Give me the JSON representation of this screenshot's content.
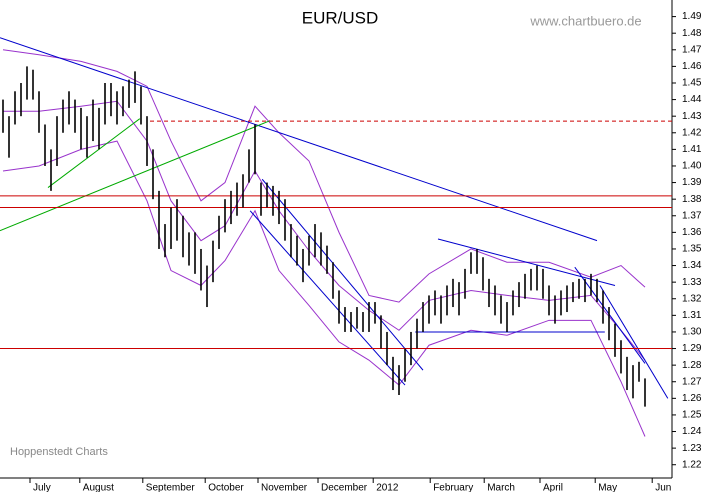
{
  "chart_data": {
    "type": "hilo",
    "title": "EUR/USD",
    "subtitle": "www.chartbuero.de",
    "annotation": "Hoppenstedt Charts",
    "color": "#000000",
    "x": [
      0,
      1,
      2,
      3,
      4,
      5,
      6,
      7,
      8,
      9,
      10,
      11,
      12,
      13,
      14,
      15,
      16,
      17,
      18,
      19,
      20,
      21,
      22,
      23,
      24,
      25,
      26,
      27,
      28,
      29,
      30,
      31,
      32,
      33,
      34,
      35,
      36,
      37,
      38,
      39,
      40,
      41,
      42,
      43,
      44,
      45,
      46,
      47,
      48,
      49,
      50,
      51,
      52,
      53,
      54,
      55,
      56,
      57,
      58,
      59,
      60,
      61,
      62,
      63,
      64,
      65,
      66,
      67,
      68,
      69,
      70,
      71,
      72,
      73,
      74,
      75,
      76,
      77,
      78,
      79,
      80,
      81,
      82,
      83,
      84,
      85,
      86,
      87,
      88,
      89,
      90,
      91,
      92,
      93,
      94,
      95,
      96,
      97,
      98,
      99,
      100,
      101,
      102,
      103,
      104,
      105,
      106,
      107
    ],
    "high": [
      1.44,
      1.43,
      1.445,
      1.45,
      1.46,
      1.458,
      1.445,
      1.425,
      1.41,
      1.43,
      1.44,
      1.445,
      1.44,
      1.435,
      1.43,
      1.44,
      1.435,
      1.45,
      1.45,
      1.445,
      1.448,
      1.452,
      1.457,
      1.448,
      1.43,
      1.41,
      1.385,
      1.365,
      1.375,
      1.38,
      1.37,
      1.36,
      1.36,
      1.35,
      1.34,
      1.355,
      1.37,
      1.38,
      1.385,
      1.39,
      1.395,
      1.41,
      1.425,
      1.39,
      1.39,
      1.388,
      1.385,
      1.38,
      1.365,
      1.358,
      1.35,
      1.358,
      1.365,
      1.36,
      1.352,
      1.342,
      1.325,
      1.315,
      1.312,
      1.315,
      1.312,
      1.318,
      1.318,
      1.31,
      1.3,
      1.285,
      1.28,
      1.29,
      1.3,
      1.308,
      1.318,
      1.322,
      1.325,
      1.322,
      1.328,
      1.332,
      1.33,
      1.338,
      1.348,
      1.35,
      1.345,
      1.332,
      1.328,
      1.322,
      1.318,
      1.325,
      1.33,
      1.335,
      1.338,
      1.34,
      1.338,
      1.328,
      1.322,
      1.325,
      1.328,
      1.33,
      1.332,
      1.332,
      1.335,
      1.332,
      1.325,
      1.315,
      1.305,
      1.295,
      1.285,
      1.28,
      1.282,
      1.272
    ],
    "low": [
      1.42,
      1.405,
      1.425,
      1.43,
      1.44,
      1.44,
      1.42,
      1.4,
      1.385,
      1.4,
      1.42,
      1.425,
      1.42,
      1.41,
      1.405,
      1.415,
      1.41,
      1.425,
      1.43,
      1.425,
      1.43,
      1.435,
      1.438,
      1.425,
      1.4,
      1.38,
      1.35,
      1.345,
      1.35,
      1.355,
      1.345,
      1.34,
      1.335,
      1.325,
      1.315,
      1.33,
      1.35,
      1.36,
      1.365,
      1.37,
      1.375,
      1.39,
      1.395,
      1.37,
      1.375,
      1.37,
      1.365,
      1.355,
      1.345,
      1.34,
      1.33,
      1.34,
      1.345,
      1.34,
      1.335,
      1.32,
      1.305,
      1.3,
      1.3,
      1.302,
      1.3,
      1.3,
      1.305,
      1.29,
      1.28,
      1.265,
      1.262,
      1.27,
      1.28,
      1.29,
      1.3,
      1.305,
      1.31,
      1.305,
      1.31,
      1.315,
      1.31,
      1.32,
      1.335,
      1.335,
      1.325,
      1.315,
      1.31,
      1.305,
      1.3,
      1.31,
      1.315,
      1.32,
      1.325,
      1.325,
      1.32,
      1.31,
      1.305,
      1.31,
      1.312,
      1.318,
      1.32,
      1.318,
      1.322,
      1.318,
      1.305,
      1.295,
      1.285,
      1.275,
      1.265,
      1.26,
      1.27,
      1.255
    ],
    "band_x": [
      0,
      6,
      13,
      19,
      24,
      28,
      33,
      37,
      42,
      46,
      51,
      56,
      61,
      66,
      71,
      78,
      84,
      91,
      98,
      103,
      107
    ],
    "bands": [
      {
        "color": "#9933cc",
        "values": [
          1.47,
          1.467,
          1.463,
          1.457,
          1.448,
          1.415,
          1.379,
          1.39,
          1.436,
          1.42,
          1.403,
          1.36,
          1.322,
          1.318,
          1.335,
          1.35,
          1.342,
          1.342,
          1.333,
          1.34,
          1.327
        ]
      },
      {
        "color": "#9933cc",
        "values": [
          1.433,
          1.433,
          1.436,
          1.439,
          1.415,
          1.379,
          1.355,
          1.364,
          1.397,
          1.373,
          1.349,
          1.328,
          1.313,
          1.301,
          1.319,
          1.325,
          1.322,
          1.319,
          1.322,
          1.301,
          1.283
        ]
      },
      {
        "color": "#9933cc",
        "values": [
          1.397,
          1.4,
          1.41,
          1.415,
          1.379,
          1.337,
          1.328,
          1.343,
          1.373,
          1.337,
          1.316,
          1.294,
          1.283,
          1.268,
          1.292,
          1.301,
          1.298,
          1.307,
          1.307,
          1.27,
          1.237
        ]
      }
    ],
    "trendlines": [
      {
        "color": "#0000cc",
        "x": [
          -0.5,
          99
        ],
        "values": [
          1.4773,
          1.355
        ]
      },
      {
        "color": "#00aa00",
        "x": [
          -0.5,
          44.5
        ],
        "values": [
          1.361,
          1.4273
        ]
      },
      {
        "color": "#00aa00",
        "x": [
          7.5,
          22.8
        ],
        "values": [
          1.387,
          1.4285
        ]
      },
      {
        "color": "#0000cc",
        "x": [
          41.2,
          67
        ],
        "values": [
          1.373,
          1.268
        ]
      },
      {
        "color": "#0000cc",
        "x": [
          43.2,
          70
        ],
        "values": [
          1.392,
          1.277
        ]
      },
      {
        "color": "#0000cc",
        "x": [
          72.5,
          102
        ],
        "values": [
          1.356,
          1.328
        ]
      },
      {
        "color": "#0000cc",
        "x": [
          99.5,
          110.8
        ],
        "values": [
          1.328,
          1.26
        ]
      },
      {
        "color": "#0000cc",
        "x": [
          95.3,
          107
        ],
        "values": [
          1.339,
          1.281
        ]
      },
      {
        "color": "#0000cc",
        "x": [
          68.7,
          100.3
        ],
        "values": [
          1.3,
          1.3
        ]
      },
      {
        "color": "#cc0000",
        "x": [
          -0.5,
          111.5
        ],
        "values": [
          1.382,
          1.382
        ]
      },
      {
        "color": "#cc0000",
        "x": [
          -0.5,
          111.5
        ],
        "values": [
          1.375,
          1.375
        ]
      },
      {
        "color": "#cc0000",
        "x": [
          -0.5,
          111.5
        ],
        "values": [
          1.29,
          1.29
        ]
      },
      {
        "color": "#cc0000",
        "x": [
          24.5,
          111.5
        ],
        "values": [
          1.427,
          1.427
        ],
        "dash": true
      }
    ],
    "xlim": [
      -0.5,
      111.5
    ],
    "xticks": [
      {
        "value": 4.5,
        "label": "July"
      },
      {
        "value": 12.8,
        "label": "August"
      },
      {
        "value": 23.3,
        "label": "September"
      },
      {
        "value": 33.7,
        "label": "October"
      },
      {
        "value": 42.5,
        "label": "November"
      },
      {
        "value": 52.5,
        "label": "December"
      },
      {
        "value": 61.7,
        "label": "2012"
      },
      {
        "value": 71.2,
        "label": "February"
      },
      {
        "value": 80.2,
        "label": "March"
      },
      {
        "value": 89.5,
        "label": "April"
      },
      {
        "value": 98.7,
        "label": "May"
      },
      {
        "value": 108.2,
        "label": "Jun"
      }
    ],
    "ylim": [
      1.212,
      1.5
    ],
    "yticks": [
      1.22,
      1.23,
      1.24,
      1.25,
      1.26,
      1.27,
      1.28,
      1.29,
      {
        "value": 1.3,
        "label": "1.30"
      },
      1.31,
      1.32,
      1.33,
      1.34,
      1.35,
      1.36,
      1.37,
      1.38,
      1.39,
      {
        "value": 1.4,
        "label": "1.40"
      },
      1.41,
      1.42,
      1.43,
      1.44,
      1.45,
      1.46,
      1.47,
      1.48,
      1.49
    ]
  }
}
